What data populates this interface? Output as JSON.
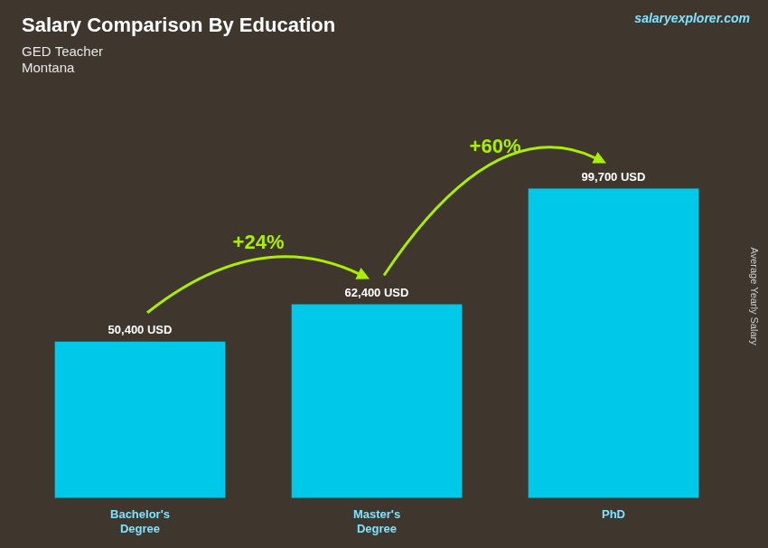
{
  "chart_data": {
    "type": "bar",
    "title": "Salary Comparison By Education",
    "subtitle": [
      "GED Teacher",
      "Montana"
    ],
    "ylabel": "Average Yearly Salary",
    "categories": [
      "Bachelor's\nDegree",
      "Master's\nDegree",
      "PhD"
    ],
    "values": [
      50400,
      62400,
      99700
    ],
    "value_labels": [
      "50,400 USD",
      "62,400 USD",
      "99,700 USD"
    ],
    "data_labels": true,
    "color": "#00c8e8",
    "ylim": [
      0,
      130000
    ],
    "grid": false,
    "tick_labels": "x",
    "annotations": [
      {
        "text": "+24%",
        "from": "Bachelor's\nDegree",
        "to": "Master's\nDegree",
        "color": "#aaee00"
      },
      {
        "text": "+60%",
        "from": "Master's\nDegree",
        "to": "PhD",
        "color": "#aaee00"
      },
      {
        "text": "salaryexplorer.com"
      }
    ]
  }
}
